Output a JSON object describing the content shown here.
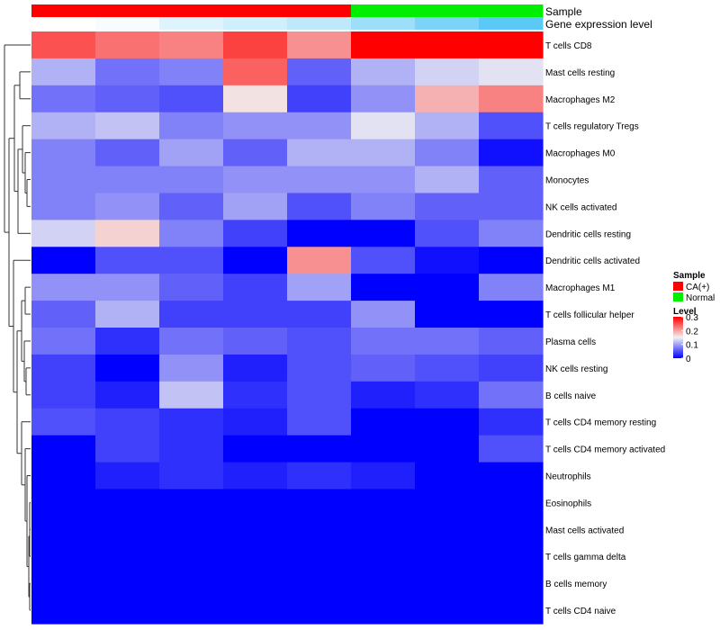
{
  "chart_data": {
    "type": "heatmap",
    "title": "",
    "n_columns": 8,
    "column_annotations": [
      {
        "name": "Sample",
        "values": [
          "CA(+)",
          "CA(+)",
          "CA(+)",
          "CA(+)",
          "CA(+)",
          "Normal",
          "Normal",
          "Normal"
        ]
      },
      {
        "name": "Gene expression level",
        "values": [
          0.0,
          0.05,
          0.2,
          0.3,
          0.4,
          0.6,
          0.8,
          1.0
        ]
      }
    ],
    "rows": [
      "T cells CD8",
      "Mast cells resting",
      "Macrophages M2",
      "T cells regulatory  Tregs",
      "Macrophages M0",
      "Monocytes",
      "NK cells activated",
      "Dendritic cells resting",
      "Dendritic cells activated",
      "Macrophages M1",
      "T cells follicular helper",
      "Plasma cells",
      "NK cells resting",
      "B cells naive",
      "T cells CD4 memory resting",
      "T cells CD4 memory activated",
      "Neutrophils",
      "Eosinophils",
      "Mast cells activated",
      "T cells gamma delta",
      "B cells memory",
      "T cells CD4 naive"
    ],
    "values": [
      [
        0.25,
        0.23,
        0.22,
        0.26,
        0.21,
        0.3,
        0.3,
        0.3
      ],
      [
        0.11,
        0.07,
        0.08,
        0.24,
        0.06,
        0.11,
        0.13,
        0.14
      ],
      [
        0.07,
        0.06,
        0.05,
        0.16,
        0.04,
        0.09,
        0.19,
        0.22
      ],
      [
        0.11,
        0.12,
        0.08,
        0.09,
        0.09,
        0.14,
        0.11,
        0.05
      ],
      [
        0.08,
        0.06,
        0.1,
        0.06,
        0.11,
        0.11,
        0.08,
        0.01
      ],
      [
        0.08,
        0.08,
        0.08,
        0.09,
        0.09,
        0.09,
        0.11,
        0.06
      ],
      [
        0.08,
        0.09,
        0.06,
        0.1,
        0.05,
        0.08,
        0.06,
        0.06
      ],
      [
        0.13,
        0.17,
        0.08,
        0.04,
        0.0,
        0.0,
        0.05,
        0.08
      ],
      [
        0.0,
        0.05,
        0.05,
        0.0,
        0.21,
        0.05,
        0.01,
        0.0
      ],
      [
        0.09,
        0.09,
        0.06,
        0.04,
        0.1,
        0.0,
        0.0,
        0.08
      ],
      [
        0.06,
        0.11,
        0.04,
        0.04,
        0.04,
        0.09,
        0.0,
        0.0
      ],
      [
        0.07,
        0.03,
        0.07,
        0.06,
        0.05,
        0.07,
        0.07,
        0.06
      ],
      [
        0.04,
        0.0,
        0.09,
        0.02,
        0.05,
        0.06,
        0.05,
        0.04
      ],
      [
        0.04,
        0.02,
        0.12,
        0.03,
        0.05,
        0.02,
        0.03,
        0.07
      ],
      [
        0.05,
        0.04,
        0.03,
        0.02,
        0.05,
        0.0,
        0.0,
        0.03
      ],
      [
        0.0,
        0.04,
        0.03,
        0.0,
        0.0,
        0.0,
        0.0,
        0.05
      ],
      [
        0.0,
        0.02,
        0.03,
        0.02,
        0.03,
        0.02,
        0.0,
        0.0
      ],
      [
        0.0,
        0.0,
        0.0,
        0.0,
        0.0,
        0.0,
        0.0,
        0.0
      ],
      [
        0.0,
        0.0,
        0.0,
        0.0,
        0.0,
        0.0,
        0.0,
        0.0
      ],
      [
        0.0,
        0.0,
        0.0,
        0.0,
        0.0,
        0.0,
        0.0,
        0.0
      ],
      [
        0.0,
        0.0,
        0.0,
        0.0,
        0.0,
        0.0,
        0.0,
        0.0
      ],
      [
        0.0,
        0.0,
        0.0,
        0.0,
        0.0,
        0.0,
        0.0,
        0.0
      ]
    ],
    "color_scale": {
      "min": 0,
      "mid": 0.15,
      "max": 0.3,
      "low_color": "#0000FF",
      "mid_color": "#F2F2F2",
      "high_color": "#FF0000"
    },
    "legend": {
      "position": "right",
      "sample_title": "Sample",
      "sample_entries": [
        {
          "label": "CA(+)",
          "color": "#FF0000"
        },
        {
          "label": "Normal",
          "color": "#00EE00"
        }
      ],
      "level_title": "Level",
      "level_ticks": [
        "0.3",
        "0.2",
        "0.1",
        "0"
      ]
    },
    "expression_colors": {
      "low": "#FFFFFF",
      "high": "#5BC8F5"
    },
    "row_dendrogram": true,
    "column_dendrogram": false
  }
}
